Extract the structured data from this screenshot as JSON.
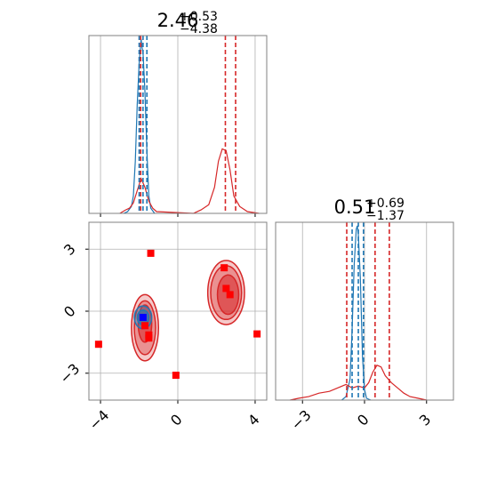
{
  "chart_data": {
    "type": "corner",
    "parameters": [
      {
        "title_main": "2.46",
        "title_plus": "+0.53",
        "title_minus": "−4.38",
        "xlim": [
          -4.6,
          4.6
        ],
        "xticks": [
          -4,
          0,
          4
        ],
        "xtick_labels": [
          "−4",
          "0",
          "4"
        ]
      },
      {
        "title_main": "0.51",
        "title_plus": "+0.69",
        "title_minus": "−1.37",
        "xlim": [
          -4.3,
          4.3
        ],
        "xticks": [
          -3,
          0,
          3
        ],
        "xtick_labels": [
          "−3",
          "0",
          "3"
        ]
      }
    ],
    "ylim_2d": [
      -4.3,
      4.3
    ],
    "yticks_2d": [
      -3,
      0,
      3
    ],
    "ytick_labels_2d": [
      "−3",
      "0",
      "3"
    ],
    "grid": true,
    "colors": {
      "blue": "#1f77b4",
      "red": "#d62728",
      "axis": "#808080",
      "grid": "#b0b0b0",
      "marker_blue": "#0000ff",
      "marker_red": "#ff0000"
    },
    "series": [
      {
        "color": "blue",
        "p1_quantiles": [
          -2.0,
          -1.8,
          -1.6
        ],
        "p2_quantiles": [
          -0.6,
          -0.3,
          -0.05
        ],
        "p1_hist": [
          {
            "x": -2.8,
            "y": 0.0
          },
          {
            "x": -2.6,
            "y": 0.01
          },
          {
            "x": -2.4,
            "y": 0.04
          },
          {
            "x": -2.3,
            "y": 0.1
          },
          {
            "x": -2.2,
            "y": 0.3
          },
          {
            "x": -2.1,
            "y": 0.62
          },
          {
            "x": -2.0,
            "y": 0.86
          },
          {
            "x": -1.9,
            "y": 1.0
          },
          {
            "x": -1.85,
            "y": 0.95
          },
          {
            "x": -1.8,
            "y": 0.92
          },
          {
            "x": -1.7,
            "y": 0.7
          },
          {
            "x": -1.6,
            "y": 0.36
          },
          {
            "x": -1.5,
            "y": 0.1
          },
          {
            "x": -1.4,
            "y": 0.03
          },
          {
            "x": -1.2,
            "y": 0.0
          }
        ],
        "p2_hist": [
          {
            "x": -1.1,
            "y": 0.0
          },
          {
            "x": -0.9,
            "y": 0.02
          },
          {
            "x": -0.7,
            "y": 0.12
          },
          {
            "x": -0.6,
            "y": 0.4
          },
          {
            "x": -0.5,
            "y": 0.78
          },
          {
            "x": -0.4,
            "y": 0.98
          },
          {
            "x": -0.35,
            "y": 1.0
          },
          {
            "x": -0.3,
            "y": 0.95
          },
          {
            "x": -0.2,
            "y": 0.7
          },
          {
            "x": -0.1,
            "y": 0.25
          },
          {
            "x": 0.0,
            "y": 0.06
          },
          {
            "x": 0.1,
            "y": 0.01
          },
          {
            "x": 0.3,
            "y": 0.0
          }
        ],
        "contours": [
          {
            "cx": -1.8,
            "cy": -0.3,
            "rx": 0.45,
            "ry": 0.55,
            "fill_opacity": 0.35
          },
          {
            "cx": -1.8,
            "cy": -0.3,
            "rx": 0.3,
            "ry": 0.35,
            "fill_opacity": 0.6
          }
        ],
        "markers": [
          {
            "x": -1.8,
            "y": -0.3
          }
        ]
      },
      {
        "color": "red",
        "p1_quantiles": [
          -1.92,
          2.46,
          2.99
        ],
        "p2_quantiles": [
          -0.86,
          0.51,
          1.2
        ],
        "p1_hist": [
          {
            "x": -3.0,
            "y": 0.0
          },
          {
            "x": -2.7,
            "y": 0.02
          },
          {
            "x": -2.5,
            "y": 0.03
          },
          {
            "x": -2.3,
            "y": 0.06
          },
          {
            "x": -2.1,
            "y": 0.13
          },
          {
            "x": -1.9,
            "y": 0.2
          },
          {
            "x": -1.7,
            "y": 0.15
          },
          {
            "x": -1.5,
            "y": 0.07
          },
          {
            "x": -1.3,
            "y": 0.03
          },
          {
            "x": -1.1,
            "y": 0.01
          },
          {
            "x": 0.8,
            "y": 0.0
          },
          {
            "x": 1.2,
            "y": 0.02
          },
          {
            "x": 1.6,
            "y": 0.05
          },
          {
            "x": 1.9,
            "y": 0.15
          },
          {
            "x": 2.1,
            "y": 0.3
          },
          {
            "x": 2.3,
            "y": 0.37
          },
          {
            "x": 2.5,
            "y": 0.36
          },
          {
            "x": 2.7,
            "y": 0.25
          },
          {
            "x": 2.9,
            "y": 0.1
          },
          {
            "x": 3.2,
            "y": 0.04
          },
          {
            "x": 3.6,
            "y": 0.01
          },
          {
            "x": 4.2,
            "y": 0.0
          }
        ],
        "p2_hist": [
          {
            "x": -3.6,
            "y": 0.0
          },
          {
            "x": -3.2,
            "y": 0.01
          },
          {
            "x": -2.7,
            "y": 0.02
          },
          {
            "x": -2.2,
            "y": 0.04
          },
          {
            "x": -1.7,
            "y": 0.05
          },
          {
            "x": -1.3,
            "y": 0.07
          },
          {
            "x": -0.9,
            "y": 0.09
          },
          {
            "x": -0.6,
            "y": 0.07
          },
          {
            "x": -0.3,
            "y": 0.08
          },
          {
            "x": 0.0,
            "y": 0.07
          },
          {
            "x": 0.2,
            "y": 0.1
          },
          {
            "x": 0.4,
            "y": 0.16
          },
          {
            "x": 0.6,
            "y": 0.2
          },
          {
            "x": 0.8,
            "y": 0.19
          },
          {
            "x": 1.0,
            "y": 0.14
          },
          {
            "x": 1.3,
            "y": 0.1
          },
          {
            "x": 1.6,
            "y": 0.07
          },
          {
            "x": 1.9,
            "y": 0.04
          },
          {
            "x": 2.2,
            "y": 0.02
          },
          {
            "x": 2.6,
            "y": 0.01
          },
          {
            "x": 3.0,
            "y": 0.0
          }
        ],
        "contours": [
          {
            "cx": 2.5,
            "cy": 0.9,
            "rx": 0.95,
            "ry": 1.55,
            "fill_opacity": 0.25
          },
          {
            "cx": 2.5,
            "cy": 0.9,
            "rx": 0.8,
            "ry": 1.3,
            "fill_opacity": 0.35
          },
          {
            "cx": 2.6,
            "cy": 0.8,
            "rx": 0.55,
            "ry": 0.95,
            "fill_opacity": 0.55
          },
          {
            "cx": -1.7,
            "cy": -0.8,
            "rx": 0.7,
            "ry": 1.6,
            "fill_opacity": 0.25
          },
          {
            "cx": -1.7,
            "cy": -0.8,
            "rx": 0.55,
            "ry": 1.3,
            "fill_opacity": 0.35
          },
          {
            "cx": -1.7,
            "cy": -0.6,
            "rx": 0.35,
            "ry": 0.9,
            "fill_opacity": 0.55
          }
        ],
        "markers": [
          {
            "x": -1.4,
            "y": 2.8
          },
          {
            "x": 2.4,
            "y": 2.1
          },
          {
            "x": 2.5,
            "y": 1.1
          },
          {
            "x": 2.7,
            "y": 0.8
          },
          {
            "x": 4.1,
            "y": -1.1
          },
          {
            "x": -4.1,
            "y": -1.6
          },
          {
            "x": -1.5,
            "y": -1.3
          },
          {
            "x": -1.5,
            "y": -1.15
          },
          {
            "x": -1.7,
            "y": -0.7
          },
          {
            "x": -0.1,
            "y": -3.1
          }
        ]
      }
    ]
  }
}
